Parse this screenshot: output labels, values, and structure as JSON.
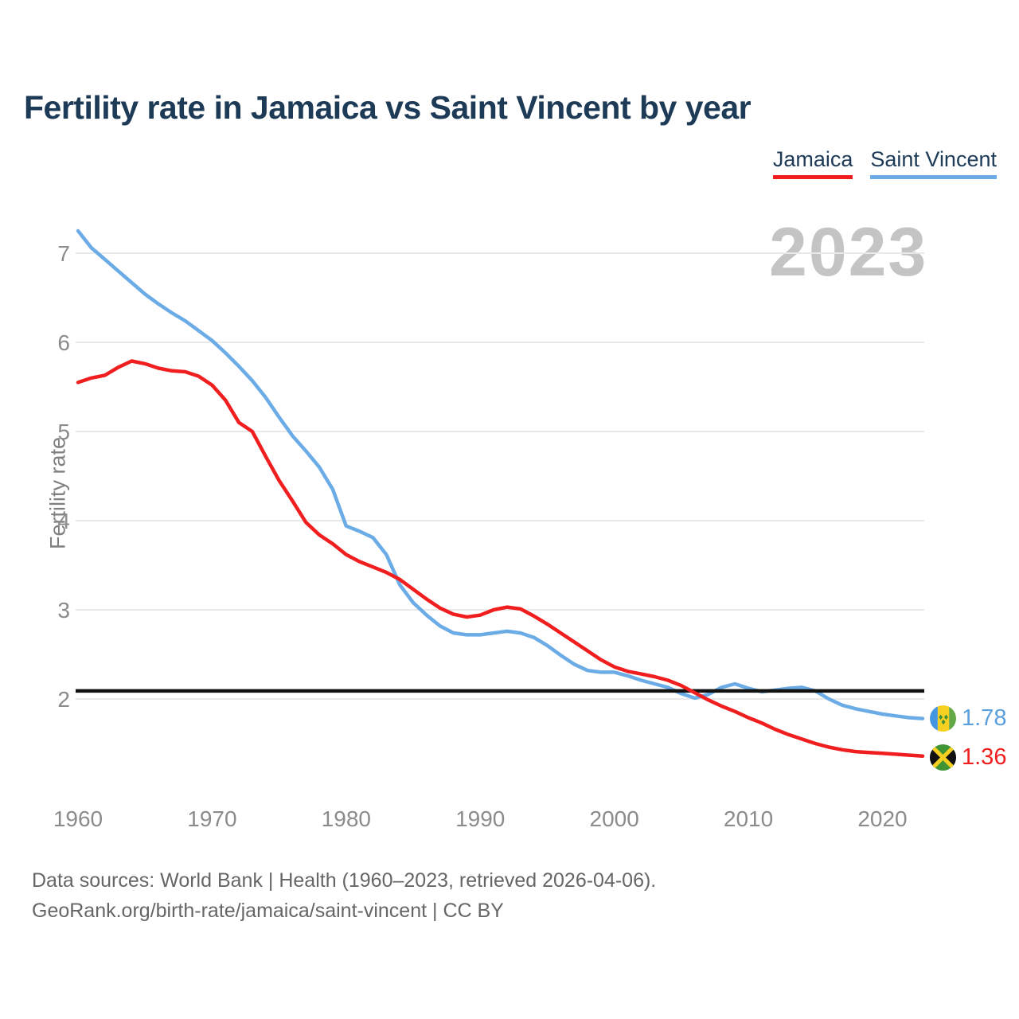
{
  "title": "Fertility rate in Jamaica vs Saint Vincent by year",
  "watermark": "2023",
  "legend": {
    "items": [
      {
        "label": "Jamaica",
        "color": "#f01e1e"
      },
      {
        "label": "Saint Vincent",
        "color": "#6cace6"
      }
    ]
  },
  "y_axis": {
    "label": "Fertility rate",
    "ticks": [
      2,
      3,
      4,
      5,
      6,
      7
    ]
  },
  "x_axis": {
    "ticks": [
      1960,
      1970,
      1980,
      1990,
      2000,
      2010,
      2020
    ]
  },
  "reference_line": {
    "value": 2.09,
    "color": "#111111"
  },
  "end_labels": {
    "saint_vincent": {
      "value": "1.78",
      "color": "#5b9fde",
      "flag": "saint-vincent-flag"
    },
    "jamaica": {
      "value": "1.36",
      "color": "#f01e1e",
      "flag": "jamaica-flag"
    }
  },
  "footer": {
    "line1": "Data sources: World Bank | Health (1960–2023, retrieved 2026-04-06).",
    "line2": "GeoRank.org/birth-rate/jamaica/saint-vincent | CC BY"
  },
  "chart_data": {
    "type": "line",
    "title": "Fertility rate in Jamaica vs Saint Vincent by year",
    "xlabel": "",
    "ylabel": "Fertility rate",
    "xlim": [
      1960,
      2023
    ],
    "ylim": [
      1.2,
      7.4
    ],
    "grid": "horizontal",
    "legend_position": "top-right",
    "reference_line": 2.09,
    "x_start_year": 1960,
    "series": [
      {
        "name": "Saint Vincent",
        "color": "#6cace6",
        "values": [
          7.25,
          7.06,
          6.93,
          6.8,
          6.67,
          6.54,
          6.43,
          6.33,
          6.24,
          6.13,
          6.02,
          5.88,
          5.73,
          5.57,
          5.38,
          5.16,
          4.95,
          4.78,
          4.6,
          4.35,
          3.94,
          3.88,
          3.81,
          3.62,
          3.28,
          3.08,
          2.94,
          2.82,
          2.74,
          2.72,
          2.72,
          2.74,
          2.76,
          2.74,
          2.69,
          2.6,
          2.49,
          2.39,
          2.32,
          2.3,
          2.3,
          2.26,
          2.21,
          2.17,
          2.13,
          2.06,
          2.01,
          2.05,
          2.13,
          2.17,
          2.12,
          2.08,
          2.1,
          2.12,
          2.13,
          2.09,
          2.0,
          1.93,
          1.89,
          1.86,
          1.83,
          1.81,
          1.79,
          1.78
        ]
      },
      {
        "name": "Jamaica",
        "color": "#f01e1e",
        "values": [
          5.55,
          5.6,
          5.63,
          5.72,
          5.79,
          5.76,
          5.71,
          5.68,
          5.67,
          5.62,
          5.52,
          5.35,
          5.1,
          5.0,
          4.72,
          4.45,
          4.22,
          3.98,
          3.84,
          3.74,
          3.62,
          3.54,
          3.48,
          3.42,
          3.34,
          3.23,
          3.12,
          3.02,
          2.95,
          2.92,
          2.94,
          3.0,
          3.03,
          3.01,
          2.93,
          2.84,
          2.74,
          2.64,
          2.54,
          2.44,
          2.36,
          2.31,
          2.28,
          2.25,
          2.21,
          2.15,
          2.07,
          1.99,
          1.92,
          1.86,
          1.79,
          1.73,
          1.66,
          1.6,
          1.55,
          1.5,
          1.46,
          1.43,
          1.41,
          1.4,
          1.39,
          1.38,
          1.37,
          1.36
        ]
      }
    ]
  }
}
